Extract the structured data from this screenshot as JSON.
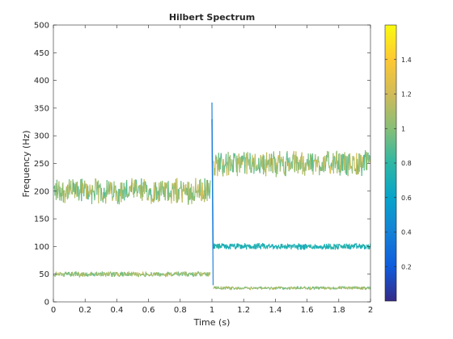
{
  "chart_data": {
    "type": "line",
    "title": "Hilbert Spectrum",
    "xlabel": "Time (s)",
    "ylabel": "Frequency (Hz)",
    "xlim": [
      0,
      2
    ],
    "ylim": [
      0,
      500
    ],
    "xticks": [
      0,
      0.2,
      0.4,
      0.6,
      0.8,
      1,
      1.2,
      1.4,
      1.6,
      1.8,
      2
    ],
    "xtick_labels": [
      "0",
      "0.2",
      "0.4",
      "0.6",
      "0.8",
      "1",
      "1.2",
      "1.4",
      "1.6",
      "1.8",
      "2"
    ],
    "yticks": [
      0,
      50,
      100,
      150,
      200,
      250,
      300,
      350,
      400,
      450,
      500
    ],
    "ytick_labels": [
      "0",
      "50",
      "100",
      "150",
      "200",
      "250",
      "300",
      "350",
      "400",
      "450",
      "500"
    ],
    "grid": false,
    "colorbar": {
      "colormap": "parula",
      "range": [
        0,
        1.6
      ],
      "ticks": [
        0.2,
        0.4,
        0.6,
        0.8,
        1,
        1.2,
        1.4
      ],
      "tick_labels": [
        "0.2",
        "0.4",
        "0.6",
        "0.8",
        "1",
        "1.2",
        "1.4"
      ]
    },
    "series": [
      {
        "segments": [
          {
            "t_start": 0,
            "t_end": 0.99,
            "mean_freq": 200,
            "spread": 25,
            "amplitude": [
              0.85,
              1.25
            ]
          },
          {
            "t_start": 1.01,
            "t_end": 2,
            "mean_freq": 250,
            "spread": 25,
            "amplitude": [
              0.85,
              1.25
            ]
          }
        ]
      },
      {
        "segments": [
          {
            "t_start": 1.01,
            "t_end": 2,
            "mean_freq": 100,
            "spread": 6,
            "amplitude": [
              0.65,
              0.8
            ]
          }
        ]
      },
      {
        "segments": [
          {
            "t_start": 0,
            "t_end": 0.99,
            "mean_freq": 50,
            "spread": 5,
            "amplitude": [
              0.9,
              1.2
            ]
          },
          {
            "t_start": 1.01,
            "t_end": 2,
            "mean_freq": 25,
            "spread": 3,
            "amplitude": [
              0.9,
              1.2
            ]
          }
        ]
      }
    ],
    "transients": [
      {
        "t": 1.0,
        "freq_from": 360,
        "freq_to": 30
      },
      {
        "t": 1.0,
        "freq_from": 330,
        "freq_to": 95
      }
    ]
  }
}
